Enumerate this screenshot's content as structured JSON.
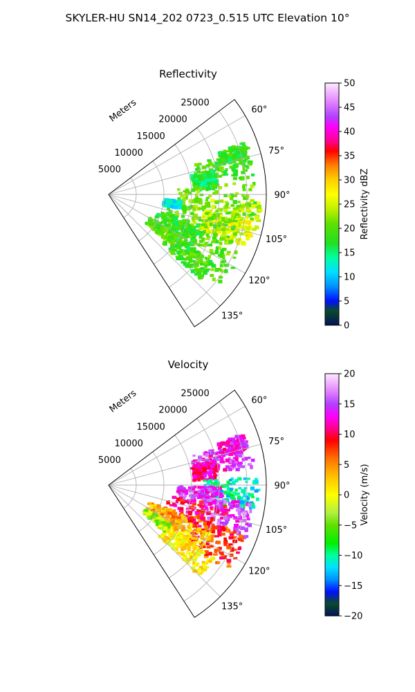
{
  "figure": {
    "title": "SKYLER-HU  SN14_202  0723_0.515 UTC Elevation 10°"
  },
  "chart_data": [
    {
      "type": "heatmap",
      "projection": "polar-sector",
      "title": "Reflectivity",
      "range_axis_label": "Meters",
      "range_ticks": [
        "5000",
        "10000",
        "15000",
        "20000",
        "25000"
      ],
      "range_values": [
        5000,
        10000,
        15000,
        20000,
        25000
      ],
      "rmax": 28500,
      "azimuth_range_deg": [
        53,
        147
      ],
      "azimuth_ticks": [
        "60°",
        "75°",
        "90°",
        "105°",
        "120°",
        "135°"
      ],
      "azimuth_values": [
        60,
        75,
        90,
        105,
        120,
        135
      ],
      "grid": true,
      "colorbar": {
        "label": "Reflectivity dBZ",
        "range": [
          0,
          50
        ],
        "ticks": [
          "0",
          "5",
          "10",
          "15",
          "20",
          "25",
          "30",
          "35",
          "40",
          "45",
          "50"
        ],
        "tick_values": [
          0,
          5,
          10,
          15,
          20,
          25,
          30,
          35,
          40,
          45,
          50
        ],
        "stops": [
          {
            "v": 0,
            "c": "#04125a"
          },
          {
            "v": 3,
            "c": "#0a4a2a"
          },
          {
            "v": 5,
            "c": "#0010ff"
          },
          {
            "v": 8,
            "c": "#0090ff"
          },
          {
            "v": 11,
            "c": "#00e0ff"
          },
          {
            "v": 14,
            "c": "#00ffa0"
          },
          {
            "v": 17,
            "c": "#20e020"
          },
          {
            "v": 21,
            "c": "#60e000"
          },
          {
            "v": 24,
            "c": "#c0f000"
          },
          {
            "v": 27,
            "c": "#ffff00"
          },
          {
            "v": 30,
            "c": "#ffd000"
          },
          {
            "v": 33,
            "c": "#ff8000"
          },
          {
            "v": 36,
            "c": "#ff0000"
          },
          {
            "v": 38,
            "c": "#ff0090"
          },
          {
            "v": 41,
            "c": "#ff00ff"
          },
          {
            "v": 43,
            "c": "#b040ff"
          },
          {
            "v": 46,
            "c": "#e080ff"
          },
          {
            "v": 50,
            "c": "#ffe8ff"
          }
        ]
      },
      "echo_blobs": [
        {
          "az": 77,
          "r": 21000,
          "daz": 6,
          "dr": 5500,
          "v": 19
        },
        {
          "az": 72,
          "r": 23500,
          "daz": 3,
          "dr": 2500,
          "v": 18
        },
        {
          "az": 82,
          "r": 17500,
          "daz": 5,
          "dr": 2200,
          "v": 16
        },
        {
          "az": 93,
          "r": 19500,
          "daz": 8,
          "dr": 7000,
          "v": 21
        },
        {
          "az": 100,
          "r": 22500,
          "daz": 7,
          "dr": 5000,
          "v": 24
        },
        {
          "az": 106,
          "r": 22000,
          "daz": 5,
          "dr": 4500,
          "v": 26
        },
        {
          "az": 110,
          "r": 17500,
          "daz": 9,
          "dr": 6500,
          "v": 21
        },
        {
          "az": 120,
          "r": 19000,
          "daz": 9,
          "dr": 7000,
          "v": 20
        },
        {
          "az": 128,
          "r": 18000,
          "daz": 5,
          "dr": 5000,
          "v": 19
        },
        {
          "az": 116,
          "r": 13500,
          "daz": 8,
          "dr": 4000,
          "v": 18
        },
        {
          "az": 124,
          "r": 11500,
          "daz": 4,
          "dr": 3000,
          "v": 20
        },
        {
          "az": 98,
          "r": 11500,
          "daz": 3,
          "dr": 1500,
          "v": 12
        }
      ]
    },
    {
      "type": "heatmap",
      "projection": "polar-sector",
      "title": "Velocity",
      "range_axis_label": "Meters",
      "range_ticks": [
        "5000",
        "10000",
        "15000",
        "20000",
        "25000"
      ],
      "range_values": [
        5000,
        10000,
        15000,
        20000,
        25000
      ],
      "rmax": 28500,
      "azimuth_range_deg": [
        53,
        147
      ],
      "azimuth_ticks": [
        "60°",
        "75°",
        "90°",
        "105°",
        "120°",
        "135°"
      ],
      "azimuth_values": [
        60,
        75,
        90,
        105,
        120,
        135
      ],
      "grid": true,
      "colorbar": {
        "label": "Velocity (m/s)",
        "range": [
          -20,
          20
        ],
        "ticks": [
          "−20",
          "−15",
          "−10",
          "−5",
          "0",
          "5",
          "10",
          "15",
          "20"
        ],
        "tick_values": [
          -20,
          -15,
          -10,
          -5,
          0,
          5,
          10,
          15,
          20
        ],
        "stops": [
          {
            "v": -20,
            "c": "#04125a"
          },
          {
            "v": -18,
            "c": "#0a4a2a"
          },
          {
            "v": -16,
            "c": "#0010ff"
          },
          {
            "v": -14,
            "c": "#0090ff"
          },
          {
            "v": -12,
            "c": "#00e0ff"
          },
          {
            "v": -10,
            "c": "#00ffa0"
          },
          {
            "v": -8,
            "c": "#00f000"
          },
          {
            "v": -5,
            "c": "#60e000"
          },
          {
            "v": -3,
            "c": "#b0f040"
          },
          {
            "v": 0,
            "c": "#ffff00"
          },
          {
            "v": 3,
            "c": "#ffc000"
          },
          {
            "v": 6,
            "c": "#ff7000"
          },
          {
            "v": 9,
            "c": "#ff0000"
          },
          {
            "v": 11,
            "c": "#ff0090"
          },
          {
            "v": 13,
            "c": "#ff00ff"
          },
          {
            "v": 15,
            "c": "#b040ff"
          },
          {
            "v": 17,
            "c": "#e080ff"
          },
          {
            "v": 20,
            "c": "#ffe8ff"
          }
        ]
      },
      "echo_blobs": [
        {
          "az": 77,
          "r": 21000,
          "daz": 6,
          "dr": 5500,
          "v": 14
        },
        {
          "az": 72,
          "r": 23500,
          "daz": 3,
          "dr": 2500,
          "v": 13
        },
        {
          "az": 82,
          "r": 17500,
          "daz": 5,
          "dr": 2200,
          "v": 11
        },
        {
          "az": 93,
          "r": 22000,
          "daz": 6,
          "dr": 5000,
          "v": -11
        },
        {
          "az": 96,
          "r": 16500,
          "daz": 5,
          "dr": 4000,
          "v": 14
        },
        {
          "az": 104,
          "r": 22000,
          "daz": 7,
          "dr": 4500,
          "v": 15
        },
        {
          "az": 108,
          "r": 16500,
          "daz": 8,
          "dr": 5500,
          "v": 10
        },
        {
          "az": 118,
          "r": 21500,
          "daz": 8,
          "dr": 5000,
          "v": 8
        },
        {
          "az": 122,
          "r": 15500,
          "daz": 8,
          "dr": 5000,
          "v": 2
        },
        {
          "az": 130,
          "r": 18000,
          "daz": 5,
          "dr": 5000,
          "v": 1
        },
        {
          "az": 118,
          "r": 11500,
          "daz": 6,
          "dr": 3500,
          "v": 4
        },
        {
          "az": 126,
          "r": 10500,
          "daz": 3,
          "dr": 2500,
          "v": -3
        }
      ]
    }
  ]
}
